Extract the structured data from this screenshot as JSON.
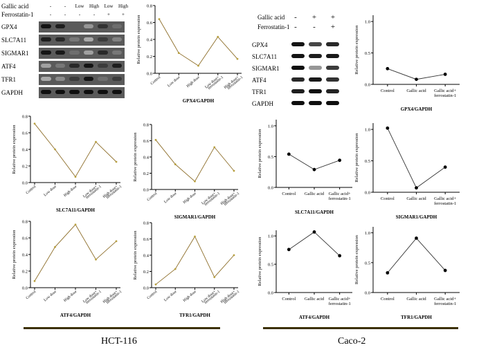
{
  "hct_blot": {
    "header_rows": [
      {
        "label": "Gallic acid",
        "cells": [
          "-",
          "-",
          "Low",
          "High",
          "Low",
          "High"
        ]
      },
      {
        "label": "Ferrostatin-1",
        "cells": [
          "-",
          "-",
          "-",
          "-",
          "+",
          "+"
        ]
      }
    ],
    "bands": [
      "GPX4",
      "SLC7A11",
      "SIGMAR1",
      "ATF4",
      "TFR1",
      "GAPDH"
    ]
  },
  "caco_blot": {
    "header_rows": [
      {
        "label": "Gallic acid",
        "cells": [
          "-",
          "+",
          "+"
        ]
      },
      {
        "label": "Ferrostatin-1",
        "cells": [
          "-",
          "-",
          "+"
        ]
      }
    ],
    "bands": [
      "GPX4",
      "SLC7A11",
      "SIGMAR1",
      "ATF4",
      "TFR1",
      "GAPDH"
    ]
  },
  "groups": {
    "left": "HCT-116",
    "right": "Caco-2"
  },
  "chart_data": [
    {
      "id": "hct_gpx4",
      "type": "line",
      "group": "HCT-116",
      "categories": [
        "Control",
        "Low dose",
        "High dose",
        "Low dose+ ferrostatin-1",
        "High dose+ ferrostatin-1"
      ],
      "values": [
        0.64,
        0.24,
        0.09,
        0.43,
        0.17
      ],
      "ylim": [
        0,
        0.8
      ],
      "yticks": [
        "0.0",
        "0.2",
        "0.4",
        "0.6",
        "0.8"
      ],
      "ylabel": "Relative protein expression",
      "title": "GPX4/GAPDH",
      "line_color": "#8d6e2a",
      "marker_color": "#b8a040"
    },
    {
      "id": "hct_slc7a11",
      "type": "line",
      "group": "HCT-116",
      "categories": [
        "Control",
        "Low dose",
        "High dose",
        "Low dose+ ferrostatin-1",
        "High dose+ ferrostatin-1"
      ],
      "values": [
        0.71,
        0.4,
        0.07,
        0.49,
        0.25
      ],
      "ylim": [
        0,
        0.8
      ],
      "yticks": [
        "0.0",
        "0.2",
        "0.4",
        "0.6",
        "0.8"
      ],
      "ylabel": "Relative protein expression",
      "title": "SLC7A11/GAPDH",
      "line_color": "#8d6e2a",
      "marker_color": "#b8a040"
    },
    {
      "id": "hct_sigmar1",
      "type": "line",
      "group": "HCT-116",
      "categories": [
        "Control",
        "Low dose",
        "High dose",
        "Low dose+ ferrostatin-1",
        "High dose+ ferrostatin-1"
      ],
      "values": [
        0.61,
        0.31,
        0.1,
        0.52,
        0.23
      ],
      "ylim": [
        0,
        0.8
      ],
      "yticks": [
        "0.0",
        "0.2",
        "0.4",
        "0.6",
        "0.8"
      ],
      "ylabel": "Relative protein expression",
      "title": "SIGMAR1/GAPDH",
      "line_color": "#8d6e2a",
      "marker_color": "#b8a040"
    },
    {
      "id": "hct_atf4",
      "type": "line",
      "group": "HCT-116",
      "categories": [
        "Control",
        "Low dose",
        "High dose",
        "Low dose+ ferrostatin-1",
        "High dose+ ferrostatin-1"
      ],
      "values": [
        0.08,
        0.49,
        0.76,
        0.34,
        0.56
      ],
      "ylim": [
        0,
        0.8
      ],
      "yticks": [
        "0.0",
        "0.2",
        "0.4",
        "0.6",
        "0.8"
      ],
      "ylabel": "Relative protein expression",
      "title": "ATF4/GAPDH",
      "line_color": "#8d6e2a",
      "marker_color": "#b8a040"
    },
    {
      "id": "hct_tfr1",
      "type": "line",
      "group": "HCT-116",
      "categories": [
        "Control",
        "Low dose",
        "High dose",
        "Low dose+ ferrostatin-1",
        "High dose+ ferrostatin-1"
      ],
      "values": [
        0.04,
        0.23,
        0.63,
        0.13,
        0.4
      ],
      "ylim": [
        0,
        0.8
      ],
      "yticks": [
        "0.0",
        "0.2",
        "0.4",
        "0.6",
        "0.8"
      ],
      "ylabel": "Relative protein expression",
      "title": "TFR1/GAPDH",
      "line_color": "#8d6e2a",
      "marker_color": "#b8a040"
    },
    {
      "id": "caco_gpx4",
      "type": "line",
      "group": "Caco-2",
      "categories": [
        "Control",
        "Gallic acid",
        "Gallic acid+ ferrostatin-1"
      ],
      "values": [
        0.25,
        0.08,
        0.16
      ],
      "ylim": [
        0,
        1.1
      ],
      "yticks": [
        "0.0",
        "0.5",
        "1.0"
      ],
      "ytickvals": [
        0,
        0.5,
        1.0
      ],
      "ylabel": "Relative protein expression",
      "title": "GPX4/GAPDH",
      "line_color": "#333333",
      "marker_color": "#000000"
    },
    {
      "id": "caco_slc7a11",
      "type": "line",
      "group": "Caco-2",
      "categories": [
        "Control",
        "Gallic acid",
        "Gallic acid+ ferrostatin-1"
      ],
      "values": [
        0.54,
        0.29,
        0.44
      ],
      "ylim": [
        0,
        1.1
      ],
      "yticks": [
        "0.0",
        "0.5",
        "1.0"
      ],
      "ytickvals": [
        0,
        0.5,
        1.0
      ],
      "ylabel": "Relative protein expression",
      "title": "SLC7A11/GAPDH",
      "line_color": "#333333",
      "marker_color": "#000000"
    },
    {
      "id": "caco_sigmar1",
      "type": "line",
      "group": "Caco-2",
      "categories": [
        "Control",
        "Gallic acid",
        "Gallic acid+ ferrostatin-1"
      ],
      "values": [
        1.02,
        0.07,
        0.4
      ],
      "ylim": [
        0,
        1.1
      ],
      "yticks": [
        "0.0",
        "0.5",
        "1.0"
      ],
      "ytickvals": [
        0,
        0.5,
        1.0
      ],
      "ylabel": "Relative protein expression",
      "title": "SIGMAR1/GAPDH",
      "line_color": "#333333",
      "marker_color": "#000000"
    },
    {
      "id": "caco_atf4",
      "type": "line",
      "group": "Caco-2",
      "categories": [
        "Control",
        "Gallic acid",
        "Gallic acid+ ferrostatin-1"
      ],
      "values": [
        0.76,
        1.07,
        0.65
      ],
      "ylim": [
        0,
        1.1
      ],
      "yticks": [
        "0.0",
        "0.5",
        "1.0"
      ],
      "ytickvals": [
        0,
        0.5,
        1.0
      ],
      "ylabel": "Relative protein expression",
      "title": "ATF4/GAPDH",
      "line_color": "#333333",
      "marker_color": "#000000"
    },
    {
      "id": "caco_tfr1",
      "type": "line",
      "group": "Caco-2",
      "categories": [
        "Control",
        "Gallic acid",
        "Gallic acid+ ferrostatin-1"
      ],
      "values": [
        0.33,
        0.91,
        0.37
      ],
      "ylim": [
        0,
        1.1
      ],
      "yticks": [
        "0.0",
        "0.5",
        "1.0"
      ],
      "ytickvals": [
        0,
        0.5,
        1.0
      ],
      "ylabel": "Relative protein expression",
      "title": "TFR1/GAPDH",
      "line_color": "#333333",
      "marker_color": "#000000"
    }
  ]
}
